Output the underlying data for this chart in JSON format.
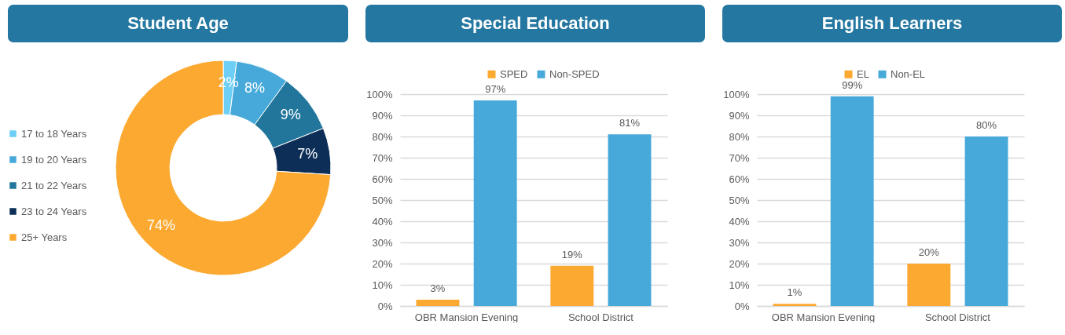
{
  "chart_data": [
    {
      "type": "donut",
      "title": "Student Age",
      "categories": [
        "17 to 18 Years",
        "19 to 20 Years",
        "21 to 22 Years",
        "23 to 24 Years",
        "25+ Years"
      ],
      "values": [
        2,
        8,
        9,
        7,
        74
      ],
      "colors": [
        "#6dcff6",
        "#47a9da",
        "#22769c",
        "#0d2f57",
        "#fba931"
      ],
      "value_labels": [
        "2%",
        "8%",
        "9%",
        "7%",
        "74%"
      ],
      "legend": "left"
    },
    {
      "type": "bar",
      "title": "Special Education",
      "categories": [
        "OBR Mansion Evening",
        "School District"
      ],
      "series": [
        {
          "name": "SPED",
          "color": "#fba931",
          "values": [
            3,
            19
          ],
          "value_labels": [
            "3%",
            "19%"
          ]
        },
        {
          "name": "Non-SPED",
          "color": "#47a9da",
          "values": [
            97,
            81
          ],
          "value_labels": [
            "97%",
            "81%"
          ]
        }
      ],
      "ylim": [
        0,
        100
      ],
      "yticks": [
        {
          "value": 0,
          "label": "0%"
        },
        {
          "value": 10,
          "label": "10%"
        },
        {
          "value": 20,
          "label": "20%"
        },
        {
          "value": 30,
          "label": "30%"
        },
        {
          "value": 40,
          "label": "40%"
        },
        {
          "value": 50,
          "label": "50%"
        },
        {
          "value": 60,
          "label": "60%"
        },
        {
          "value": 70,
          "label": "70%"
        },
        {
          "value": 80,
          "label": "80%"
        },
        {
          "value": 90,
          "label": "90%"
        },
        {
          "value": 100,
          "label": "100%"
        }
      ],
      "grid": "y",
      "legend": "top"
    },
    {
      "type": "bar",
      "title": "English Learners",
      "categories": [
        "OBR Mansion Evening",
        "School District"
      ],
      "series": [
        {
          "name": "EL",
          "color": "#fba931",
          "values": [
            1,
            20
          ],
          "value_labels": [
            "1%",
            "20%"
          ]
        },
        {
          "name": "Non-EL",
          "color": "#47a9da",
          "values": [
            99,
            80
          ],
          "value_labels": [
            "99%",
            "80%"
          ]
        }
      ],
      "ylim": [
        0,
        100
      ],
      "yticks": [
        {
          "value": 0,
          "label": "0%"
        },
        {
          "value": 10,
          "label": "10%"
        },
        {
          "value": 20,
          "label": "20%"
        },
        {
          "value": 30,
          "label": "30%"
        },
        {
          "value": 40,
          "label": "40%"
        },
        {
          "value": 50,
          "label": "50%"
        },
        {
          "value": 60,
          "label": "60%"
        },
        {
          "value": 70,
          "label": "70%"
        },
        {
          "value": 80,
          "label": "80%"
        },
        {
          "value": 90,
          "label": "90%"
        },
        {
          "value": 100,
          "label": "100%"
        }
      ],
      "grid": "y",
      "legend": "top"
    }
  ]
}
